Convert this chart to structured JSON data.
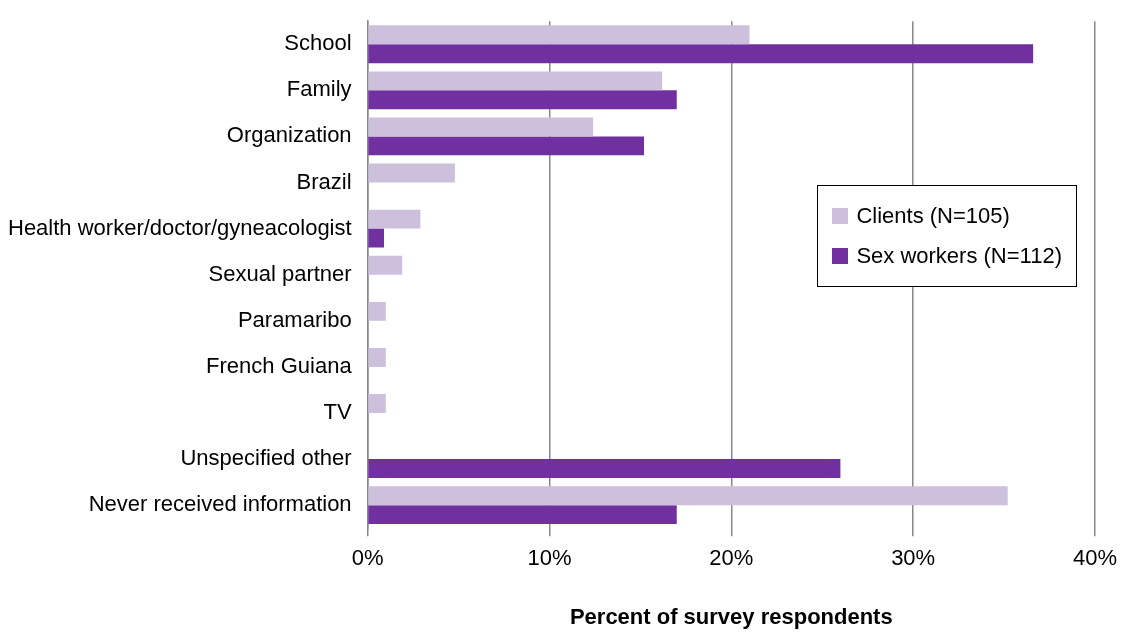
{
  "chart_data": {
    "type": "bar",
    "orientation": "horizontal",
    "xlabel": "Percent of survey respondents",
    "categories": [
      "School",
      "Family",
      "Organization",
      "Brazil",
      "Health worker/doctor/gyneacologist",
      "Sexual partner",
      "Paramaribo",
      "French Guiana",
      "TV",
      "Unspecified other",
      "Never received information"
    ],
    "series": [
      {
        "name": "Clients (N=105)",
        "color": "#ccc0dd",
        "values": [
          21.0,
          16.2,
          12.4,
          4.8,
          2.9,
          1.9,
          1.0,
          1.0,
          1.0,
          null,
          35.2
        ]
      },
      {
        "name": "Sex workers (N=112)",
        "color": "#7030a0",
        "values": [
          36.6,
          17.0,
          15.2,
          null,
          0.9,
          null,
          null,
          null,
          null,
          26.0,
          17.0
        ]
      }
    ],
    "xlim": [
      0,
      40
    ],
    "xticks": [
      {
        "value": 0,
        "label": "0%"
      },
      {
        "value": 10,
        "label": "10%"
      },
      {
        "value": 20,
        "label": "20%"
      },
      {
        "value": 30,
        "label": "30%"
      },
      {
        "value": 40,
        "label": "40%"
      }
    ],
    "grid": "x",
    "legend": "right"
  }
}
